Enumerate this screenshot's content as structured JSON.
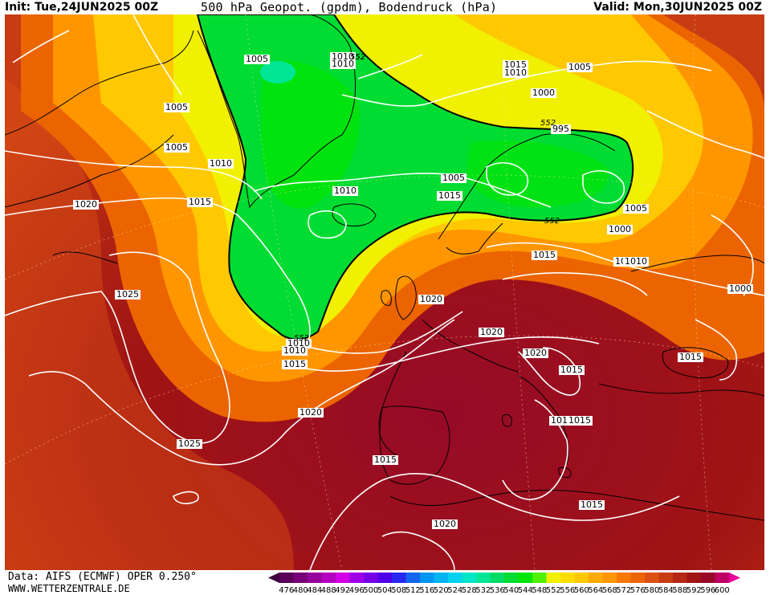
{
  "header": {
    "init": "Init: Tue,24JUN2025 00Z",
    "title": "500 hPa Geopot. (gpdm), Bodendruck (hPa)",
    "valid": "Valid: Mon,30JUN2025 00Z"
  },
  "footer": {
    "data_source": "Data: AIFS (ECMWF) OPER 0.250°",
    "website": "WWW.WETTERZENTRALE.DE"
  },
  "legend": {
    "values": [
      "476",
      "480",
      "484",
      "488",
      "492",
      "496",
      "500",
      "504",
      "508",
      "512",
      "516",
      "520",
      "524",
      "528",
      "532",
      "536",
      "540",
      "544",
      "548",
      "552",
      "556",
      "560",
      "564",
      "568",
      "572",
      "576",
      "580",
      "584",
      "588",
      "592",
      "596",
      "600"
    ],
    "colors": [
      "#5a005a",
      "#780078",
      "#96009b",
      "#b400be",
      "#d200e6",
      "#a000e6",
      "#7800e6",
      "#5000e6",
      "#2828f0",
      "#1464f0",
      "#0096f0",
      "#00b4f0",
      "#00d2f0",
      "#00e6c8",
      "#00e696",
      "#00dc64",
      "#00dc32",
      "#00e600",
      "#50f000",
      "#f0f000",
      "#ffdc00",
      "#ffc800",
      "#ffaa00",
      "#ff9600",
      "#f57800",
      "#eb6400",
      "#dc5014",
      "#c83c14",
      "#b42814",
      "#a01414",
      "#960a28",
      "#be0064"
    ],
    "arrow_left_color": "#3c003c",
    "arrow_right_color": "#e6009b"
  },
  "isobar_labels": [
    "1005",
    "1010",
    "1010",
    "1015",
    "1010",
    "1005",
    "1000",
    "995",
    "1005",
    "1005",
    "1010",
    "1010",
    "1020",
    "1015",
    "1010",
    "1015",
    "1005",
    "1005",
    "1000",
    "1010",
    "1025",
    "1015",
    "1020",
    "1010",
    "1010",
    "1000",
    "1020",
    "1020",
    "1015",
    "1015",
    "1010",
    "1020",
    "1015",
    "1025",
    "1015",
    "1015",
    "1020",
    "1015",
    "1015",
    "1015",
    "1010",
    "1000"
  ],
  "contour_labels": [
    "552",
    "552",
    "552",
    "552",
    "552"
  ]
}
